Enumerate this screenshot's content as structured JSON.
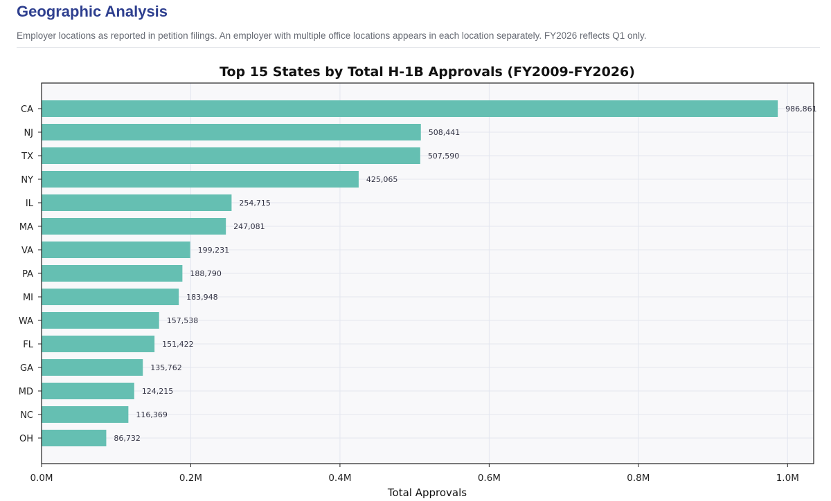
{
  "section": {
    "title": "Geographic Analysis",
    "subtitle": "Employer locations as reported in petition filings. An employer with multiple office locations appears in each location separately. FY2026 reflects Q1 only."
  },
  "colors": {
    "bar": "#65bfb2",
    "plot_background": "#f8f8fa",
    "title": "#2e3f8f"
  },
  "chart_data": {
    "type": "bar",
    "orientation": "horizontal",
    "title": "Top 15 States by Total H-1B Approvals (FY2009-FY2026)",
    "xlabel": "Total Approvals",
    "ylabel": "",
    "xlim": [
      0,
      1035000
    ],
    "x_ticks": [
      {
        "value": 0,
        "label": "0.0M"
      },
      {
        "value": 200000,
        "label": "0.2M"
      },
      {
        "value": 400000,
        "label": "0.4M"
      },
      {
        "value": 600000,
        "label": "0.6M"
      },
      {
        "value": 800000,
        "label": "0.8M"
      },
      {
        "value": 1000000,
        "label": "1.0M"
      }
    ],
    "grid": true,
    "categories": [
      "CA",
      "NJ",
      "TX",
      "NY",
      "IL",
      "MA",
      "VA",
      "PA",
      "MI",
      "WA",
      "FL",
      "GA",
      "MD",
      "NC",
      "OH"
    ],
    "values": [
      986861,
      508441,
      507590,
      425065,
      254715,
      247081,
      199231,
      188790,
      183948,
      157538,
      151422,
      135762,
      124215,
      116369,
      86732
    ],
    "value_labels": [
      "986,861",
      "508,441",
      "507,590",
      "425,065",
      "254,715",
      "247,081",
      "199,231",
      "188,790",
      "183,948",
      "157,538",
      "151,422",
      "135,762",
      "124,215",
      "116,369",
      "86,732"
    ]
  }
}
